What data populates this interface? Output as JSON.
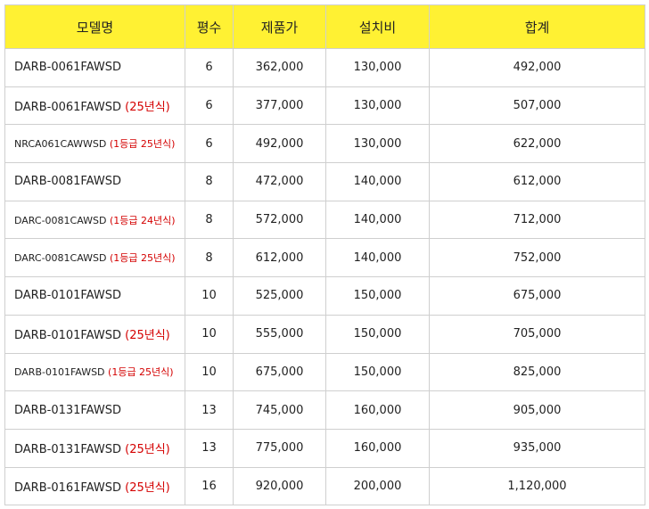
{
  "table": {
    "header": [
      "모델명",
      "평수",
      "제품가",
      "설치비",
      "합계"
    ],
    "rows": [
      {
        "model": "DARB-0061FAWSD",
        "pyeong": "6",
        "price": "362,000",
        "install": "130,000",
        "total": "492,000"
      },
      {
        "model": "DARB-0061FAWSD",
        "note": "(25년식)",
        "pyeong": "6",
        "price": "377,000",
        "install": "130,000",
        "total": "507,000"
      },
      {
        "model": "NRCA061CAWWSD",
        "note": "(1등급 25년식)",
        "pyeong": "6",
        "price": "492,000",
        "install": "130,000",
        "total": "622,000"
      },
      {
        "model": "DARB-0081FAWSD",
        "pyeong": "8",
        "price": "472,000",
        "install": "140,000",
        "total": "612,000"
      },
      {
        "model": "DARC-0081CAWSD",
        "note": "(1등급 24년식)",
        "pyeong": "8",
        "price": "572,000",
        "install": "140,000",
        "total": "712,000"
      },
      {
        "model": "DARC-0081CAWSD",
        "note": "(1등급 25년식)",
        "pyeong": "8",
        "price": "612,000",
        "install": "140,000",
        "total": "752,000"
      },
      {
        "model": "DARB-0101FAWSD",
        "pyeong": "10",
        "price": "525,000",
        "install": "150,000",
        "total": "675,000"
      },
      {
        "model": "DARB-0101FAWSD",
        "note": "(25년식)",
        "pyeong": "10",
        "price": "555,000",
        "install": "150,000",
        "total": "705,000"
      },
      {
        "model": "DARB-0101FAWSD",
        "note": "(1등급 25년식)",
        "pyeong": "10",
        "price": "675,000",
        "install": "150,000",
        "total": "825,000"
      },
      {
        "model": "DARB-0131FAWSD",
        "pyeong": "13",
        "price": "745,000",
        "install": "160,000",
        "total": "905,000"
      },
      {
        "model": "DARB-0131FAWSD",
        "note": "(25년식)",
        "pyeong": "13",
        "price": "775,000",
        "install": "160,000",
        "total": "935,000"
      },
      {
        "model": "DARB-0161FAWSD",
        "note": "(25년식)",
        "pyeong": "16",
        "price": "920,000",
        "install": "200,000",
        "total": "1,120,000"
      }
    ]
  }
}
